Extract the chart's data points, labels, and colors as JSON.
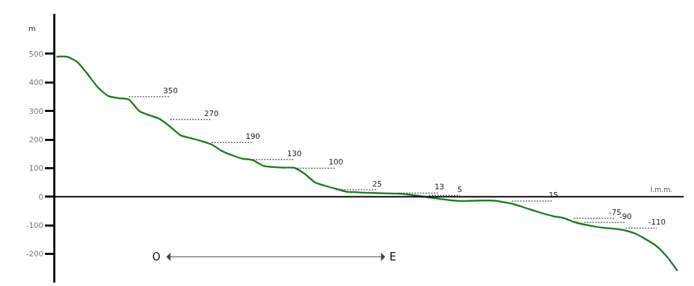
{
  "chart_data": {
    "type": "line",
    "categories": [
      null,
      null,
      null,
      null,
      null,
      null,
      null,
      null,
      null,
      null,
      null,
      null,
      null,
      null,
      null,
      null,
      null,
      null,
      null,
      null,
      null,
      null,
      null,
      null,
      null,
      null,
      null,
      null,
      null,
      null,
      null,
      null,
      null,
      null,
      null,
      null,
      null,
      null,
      null,
      null,
      null,
      null,
      null,
      null,
      null,
      null,
      null,
      null,
      null,
      null,
      null,
      null,
      null,
      null,
      null,
      null,
      null,
      null,
      null,
      null,
      null
    ],
    "ylabel": "m",
    "ref_lines": [
      {
        "axis": "y",
        "value": 0,
        "label": "l.m.m.",
        "color": "#000000"
      }
    ],
    "annotations": [
      "O",
      "E"
    ],
    "ylim": [
      -300,
      640
    ],
    "yticks": [
      -200,
      -100,
      0,
      100,
      200,
      300,
      400,
      500
    ],
    "tick_labels": "y",
    "grid": false,
    "legend": false,
    "marker": "none",
    "series": [
      {
        "color": "#1e7b1e",
        "values": [
          490,
          490,
          472,
          430,
          383,
          353,
          345,
          340,
          300,
          285,
          272,
          245,
          215,
          205,
          195,
          183,
          160,
          145,
          133,
          128,
          108,
          104,
          102,
          101,
          80,
          50,
          38,
          28,
          18,
          16,
          14,
          13,
          12,
          11,
          8,
          3,
          -2,
          -7,
          -12,
          -15,
          -14,
          -13,
          -13,
          -17,
          -24,
          -35,
          -47,
          -58,
          -68,
          -74,
          -88,
          -97,
          -104,
          -109,
          -112,
          -118,
          -130,
          -150,
          -173,
          -210,
          -259
        ]
      },
      {
        "name": "350",
        "color": "#555555",
        "line_style": "dotted",
        "values": [
          null,
          null,
          null,
          null,
          null,
          null,
          null,
          350,
          350,
          350,
          350,
          350,
          null,
          null,
          null,
          null,
          null,
          null,
          null,
          null,
          null,
          null,
          null,
          null,
          null,
          null,
          null,
          null,
          null,
          null,
          null,
          null,
          null,
          null,
          null,
          null,
          null,
          null,
          null,
          null,
          null,
          null,
          null,
          null,
          null,
          null,
          null,
          null,
          null,
          null,
          null,
          null,
          null,
          null,
          null,
          null,
          null,
          null,
          null,
          null,
          null
        ]
      },
      {
        "name": "270",
        "color": "#555555",
        "line_style": "dotted",
        "values": [
          null,
          null,
          null,
          null,
          null,
          null,
          null,
          null,
          null,
          null,
          null,
          270,
          270,
          270,
          270,
          270,
          null,
          null,
          null,
          null,
          null,
          null,
          null,
          null,
          null,
          null,
          null,
          null,
          null,
          null,
          null,
          null,
          null,
          null,
          null,
          null,
          null,
          null,
          null,
          null,
          null,
          null,
          null,
          null,
          null,
          null,
          null,
          null,
          null,
          null,
          null,
          null,
          null,
          null,
          null,
          null,
          null,
          null,
          null,
          null,
          null
        ]
      },
      {
        "name": "190",
        "color": "#555555",
        "line_style": "dotted",
        "values": [
          null,
          null,
          null,
          null,
          null,
          null,
          null,
          null,
          null,
          null,
          null,
          null,
          null,
          null,
          null,
          190,
          190,
          190,
          190,
          190,
          null,
          null,
          null,
          null,
          null,
          null,
          null,
          null,
          null,
          null,
          null,
          null,
          null,
          null,
          null,
          null,
          null,
          null,
          null,
          null,
          null,
          null,
          null,
          null,
          null,
          null,
          null,
          null,
          null,
          null,
          null,
          null,
          null,
          null,
          null,
          null,
          null,
          null,
          null,
          null,
          null
        ]
      },
      {
        "name": "130",
        "color": "#555555",
        "line_style": "dotted",
        "values": [
          null,
          null,
          null,
          null,
          null,
          null,
          null,
          null,
          null,
          null,
          null,
          null,
          null,
          null,
          null,
          null,
          null,
          null,
          null,
          130,
          130,
          130,
          130,
          130,
          null,
          null,
          null,
          null,
          null,
          null,
          null,
          null,
          null,
          null,
          null,
          null,
          null,
          null,
          null,
          null,
          null,
          null,
          null,
          null,
          null,
          null,
          null,
          null,
          null,
          null,
          null,
          null,
          null,
          null,
          null,
          null,
          null,
          null,
          null,
          null,
          null
        ]
      },
      {
        "name": "100",
        "color": "#555555",
        "line_style": "dotted",
        "values": [
          null,
          null,
          null,
          null,
          null,
          null,
          null,
          null,
          null,
          null,
          null,
          null,
          null,
          null,
          null,
          null,
          null,
          null,
          null,
          null,
          null,
          null,
          null,
          100,
          100,
          100,
          100,
          100,
          null,
          null,
          null,
          null,
          null,
          null,
          null,
          null,
          null,
          null,
          null,
          null,
          null,
          null,
          null,
          null,
          null,
          null,
          null,
          null,
          null,
          null,
          null,
          null,
          null,
          null,
          null,
          null,
          null,
          null,
          null,
          null,
          null
        ]
      },
      {
        "name": "25",
        "color": "#555555",
        "line_style": "dotted",
        "values": [
          null,
          null,
          null,
          null,
          null,
          null,
          null,
          null,
          null,
          null,
          null,
          null,
          null,
          null,
          null,
          null,
          null,
          null,
          null,
          null,
          null,
          null,
          null,
          null,
          null,
          null,
          null,
          25,
          25,
          25,
          25,
          25,
          null,
          null,
          null,
          null,
          null,
          null,
          null,
          null,
          null,
          null,
          null,
          null,
          null,
          null,
          null,
          null,
          null,
          null,
          null,
          null,
          null,
          null,
          null,
          null,
          null,
          null,
          null,
          null,
          null
        ]
      },
      {
        "name": "13",
        "color": "#555555",
        "line_style": "dotted",
        "values": [
          null,
          null,
          null,
          null,
          null,
          null,
          null,
          null,
          null,
          null,
          null,
          null,
          null,
          null,
          null,
          null,
          null,
          null,
          null,
          null,
          null,
          null,
          null,
          null,
          null,
          null,
          null,
          null,
          null,
          null,
          null,
          null,
          null,
          13,
          13,
          13,
          13,
          13,
          null,
          null,
          null,
          null,
          null,
          null,
          null,
          null,
          null,
          null,
          null,
          null,
          null,
          null,
          null,
          null,
          null,
          null,
          null,
          null,
          null,
          null,
          null
        ]
      },
      {
        "name": "5",
        "color": "#555555",
        "line_style": "dotted",
        "values": [
          null,
          null,
          null,
          null,
          null,
          null,
          null,
          null,
          null,
          null,
          null,
          null,
          null,
          null,
          null,
          null,
          null,
          null,
          null,
          null,
          null,
          null,
          null,
          null,
          null,
          null,
          null,
          null,
          null,
          null,
          null,
          null,
          null,
          null,
          null,
          null,
          5,
          5,
          5,
          5,
          null,
          null,
          null,
          null,
          null,
          null,
          null,
          null,
          null,
          null,
          null,
          null,
          null,
          null,
          null,
          null,
          null,
          null,
          null,
          null,
          null
        ]
      },
      {
        "name": "15",
        "color": "#555555",
        "line_style": "dotted",
        "values": [
          null,
          null,
          null,
          null,
          null,
          null,
          null,
          null,
          null,
          null,
          null,
          null,
          null,
          null,
          null,
          null,
          null,
          null,
          null,
          null,
          null,
          null,
          null,
          null,
          null,
          null,
          null,
          null,
          null,
          null,
          null,
          null,
          null,
          null,
          null,
          null,
          null,
          null,
          null,
          null,
          null,
          null,
          null,
          null,
          -15,
          -15,
          -15,
          -15,
          -15,
          null,
          null,
          null,
          null,
          null,
          null,
          null,
          null,
          null,
          null,
          null,
          null
        ]
      },
      {
        "name": "-75",
        "color": "#555555",
        "line_style": "dotted",
        "values": [
          null,
          null,
          null,
          null,
          null,
          null,
          null,
          null,
          null,
          null,
          null,
          null,
          null,
          null,
          null,
          null,
          null,
          null,
          null,
          null,
          null,
          null,
          null,
          null,
          null,
          null,
          null,
          null,
          null,
          null,
          null,
          null,
          null,
          null,
          null,
          null,
          null,
          null,
          null,
          null,
          null,
          null,
          null,
          null,
          null,
          null,
          null,
          null,
          null,
          null,
          -75,
          -75,
          -75,
          -75,
          -75,
          null,
          null,
          null,
          null,
          null,
          null
        ]
      },
      {
        "name": "-90",
        "color": "#555555",
        "line_style": "dotted",
        "values": [
          null,
          null,
          null,
          null,
          null,
          null,
          null,
          null,
          null,
          null,
          null,
          null,
          null,
          null,
          null,
          null,
          null,
          null,
          null,
          null,
          null,
          null,
          null,
          null,
          null,
          null,
          null,
          null,
          null,
          null,
          null,
          null,
          null,
          null,
          null,
          null,
          null,
          null,
          null,
          null,
          null,
          null,
          null,
          null,
          null,
          null,
          null,
          null,
          null,
          null,
          null,
          -90,
          -90,
          -90,
          -90,
          -90,
          null,
          null,
          null,
          null,
          null
        ]
      },
      {
        "name": "-110",
        "color": "#555555",
        "line_style": "dotted",
        "values": [
          null,
          null,
          null,
          null,
          null,
          null,
          null,
          null,
          null,
          null,
          null,
          null,
          null,
          null,
          null,
          null,
          null,
          null,
          null,
          null,
          null,
          null,
          null,
          null,
          null,
          null,
          null,
          null,
          null,
          null,
          null,
          null,
          null,
          null,
          null,
          null,
          null,
          null,
          null,
          null,
          null,
          null,
          null,
          null,
          null,
          null,
          null,
          null,
          null,
          null,
          null,
          null,
          null,
          null,
          null,
          -110,
          -110,
          -110,
          -110,
          null,
          null
        ]
      }
    ]
  }
}
